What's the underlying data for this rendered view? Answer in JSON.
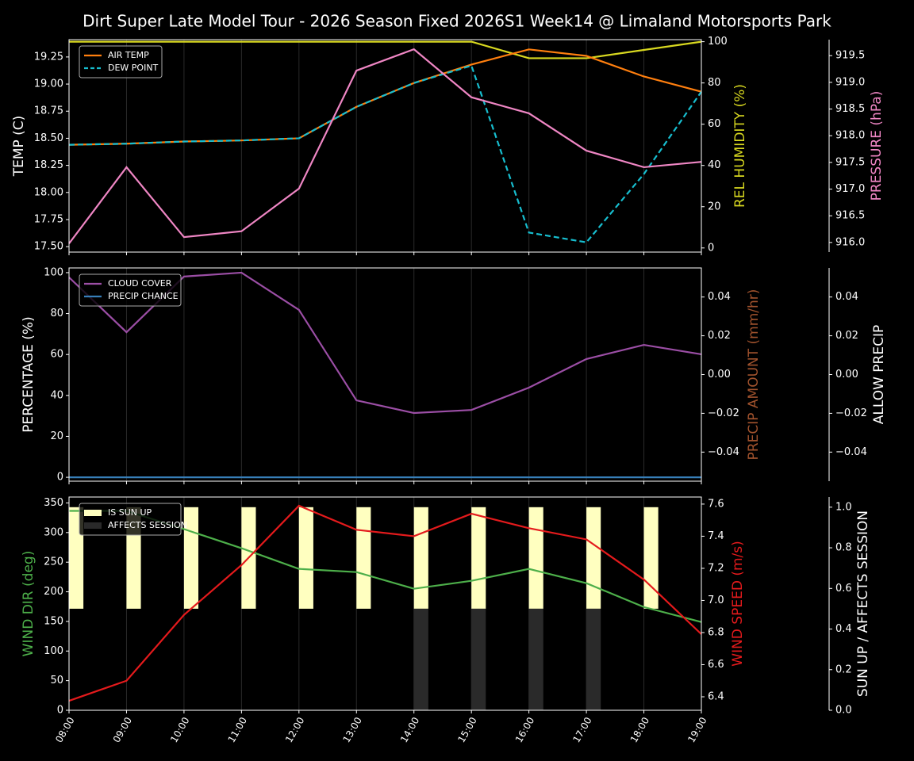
{
  "chart_data": [
    {
      "type": "line",
      "title": "Dirt Super Late Model Tour - 2026 Season Fixed 2026S1 Week14 @ Limaland Motorsports Park",
      "ylabel": "TEMP (C)",
      "y2label": "REL HUMIDITY (%)",
      "y3label": "PRESSURE (hPa)",
      "ylim": [
        17.45,
        19.41
      ],
      "yticks": [
        {
          "value": 17.5,
          "label": "17.50"
        },
        17.75,
        {
          "value": 18,
          "label": "18.00"
        },
        18.25,
        {
          "value": 18.5,
          "label": "18.50"
        },
        18.75,
        {
          "value": 19,
          "label": "19.00"
        },
        19.25
      ],
      "y2lim": [
        -2,
        101
      ],
      "y2ticks": [
        0,
        20,
        40,
        60,
        80,
        100
      ],
      "y3lim": [
        915.82,
        919.8
      ],
      "y3ticks": [
        {
          "value": 916,
          "label": "916.0"
        },
        916.5,
        {
          "value": 917,
          "label": "917.0"
        },
        917.5,
        {
          "value": 918,
          "label": "918.0"
        },
        918.5,
        {
          "value": 919,
          "label": "919.0"
        },
        919.5
      ],
      "grid": true,
      "series": [
        {
          "color": "#d8d820",
          "axis": "y2",
          "values": [
            100,
            100,
            100,
            100,
            100,
            100,
            100,
            100,
            92,
            92,
            96,
            100
          ]
        },
        {
          "name": "AIR TEMP",
          "color": "#ff7f0e",
          "values": [
            18.44,
            18.45,
            18.47,
            18.48,
            18.5,
            18.79,
            19.01,
            19.18,
            19.32,
            19.26,
            19.07,
            18.93
          ]
        },
        {
          "name": "DEW POINT",
          "color": "#17becf",
          "linestyle": "dashed",
          "values": [
            18.44,
            18.45,
            18.47,
            18.48,
            18.5,
            18.79,
            19.01,
            19.17,
            17.63,
            17.54,
            18.17,
            18.93
          ]
        },
        {
          "color": "#ef86c4",
          "axis": "y3",
          "values": [
            915.98,
            917.41,
            916.1,
            916.21,
            917.01,
            919.22,
            919.62,
            918.72,
            918.42,
            917.72,
            917.41,
            917.51
          ]
        }
      ]
    },
    {
      "type": "line",
      "ylabel": "PERCENTAGE (%)",
      "y2label": "PRECIP AMOUNT (mm/hr)",
      "y3label": "ALLOW PRECIP",
      "ylim": [
        -1.9,
        102.3
      ],
      "yticks": [
        0,
        20,
        40,
        60,
        80,
        100
      ],
      "y2lim": [
        -0.055,
        0.055
      ],
      "y2ticks": [
        {
          "value": -0.04,
          "label": "−0.04"
        },
        {
          "value": -0.02,
          "label": "−0.02"
        },
        {
          "value": 0,
          "label": "0.00"
        },
        0.02,
        0.04
      ],
      "y3lim": [
        -0.055,
        0.055
      ],
      "y3ticks": [
        {
          "value": -0.04,
          "label": "−0.04"
        },
        {
          "value": -0.02,
          "label": "−0.02"
        },
        {
          "value": 0,
          "label": "0.00"
        },
        0.02,
        0.04
      ],
      "grid": true,
      "series": [
        {
          "name": "CLOUD COVER",
          "color": "#9b4ea5",
          "values": [
            97.7,
            70.9,
            98.1,
            100,
            81.8,
            37.6,
            31.4,
            32.9,
            43.8,
            57.8,
            64.7,
            60.1
          ]
        },
        {
          "name": "PRECIP CHANCE",
          "color": "#377eb8",
          "values": [
            0,
            0,
            0,
            0,
            0,
            0,
            0,
            0,
            0,
            0,
            0,
            0
          ]
        }
      ]
    },
    {
      "type": "line",
      "ylabel": "WIND DIR (deg)",
      "y2label": "WIND SPEED (m/s)",
      "y3label": "SUN UP / AFFECTS SESSION",
      "categories": [
        "08:00",
        "09:00",
        "10:00",
        "11:00",
        "12:00",
        "13:00",
        "14:00",
        "15:00",
        "16:00",
        "17:00",
        "18:00",
        "19:00"
      ],
      "ylim": [
        0,
        360
      ],
      "yticks": [
        0,
        50,
        100,
        150,
        200,
        250,
        300,
        350
      ],
      "y2lim": [
        6.316,
        7.644
      ],
      "y2ticks": [
        6.4,
        6.6,
        6.8,
        {
          "value": 7,
          "label": "7.0"
        },
        7.2,
        7.4,
        7.6
      ],
      "y3lim": [
        0,
        1.05
      ],
      "y3ticks": [
        {
          "value": 0,
          "label": "0.0"
        },
        0.2,
        0.4,
        0.6,
        0.8,
        {
          "value": 1,
          "label": "1.0"
        }
      ],
      "grid": true,
      "series": [
        {
          "name": "IS SUN UP",
          "type": "bar",
          "color": "#ffffc0",
          "axis": "y3",
          "values": [
            1,
            1,
            1,
            1,
            1,
            1,
            1,
            1,
            1,
            1,
            1,
            0
          ]
        },
        {
          "name": "AFFECTS SESSION",
          "type": "bar",
          "color": "#2a2a2a",
          "axis": "y3",
          "values": [
            0,
            0,
            0,
            0,
            0,
            0,
            0.5,
            0.5,
            0.5,
            0.5,
            0,
            0
          ]
        },
        {
          "color": "#4daf4a",
          "values": [
            336.6,
            336.6,
            305.8,
            273.6,
            238.7,
            233.3,
            205.2,
            218.6,
            238.7,
            214.5,
            174.3,
            148.9
          ]
        },
        {
          "color": "#e41a1c",
          "axis": "y2",
          "values": [
            6.375,
            6.5,
            6.91,
            7.22,
            7.59,
            7.44,
            7.4,
            7.54,
            7.45,
            7.38,
            7.13,
            6.79
          ]
        }
      ]
    }
  ]
}
